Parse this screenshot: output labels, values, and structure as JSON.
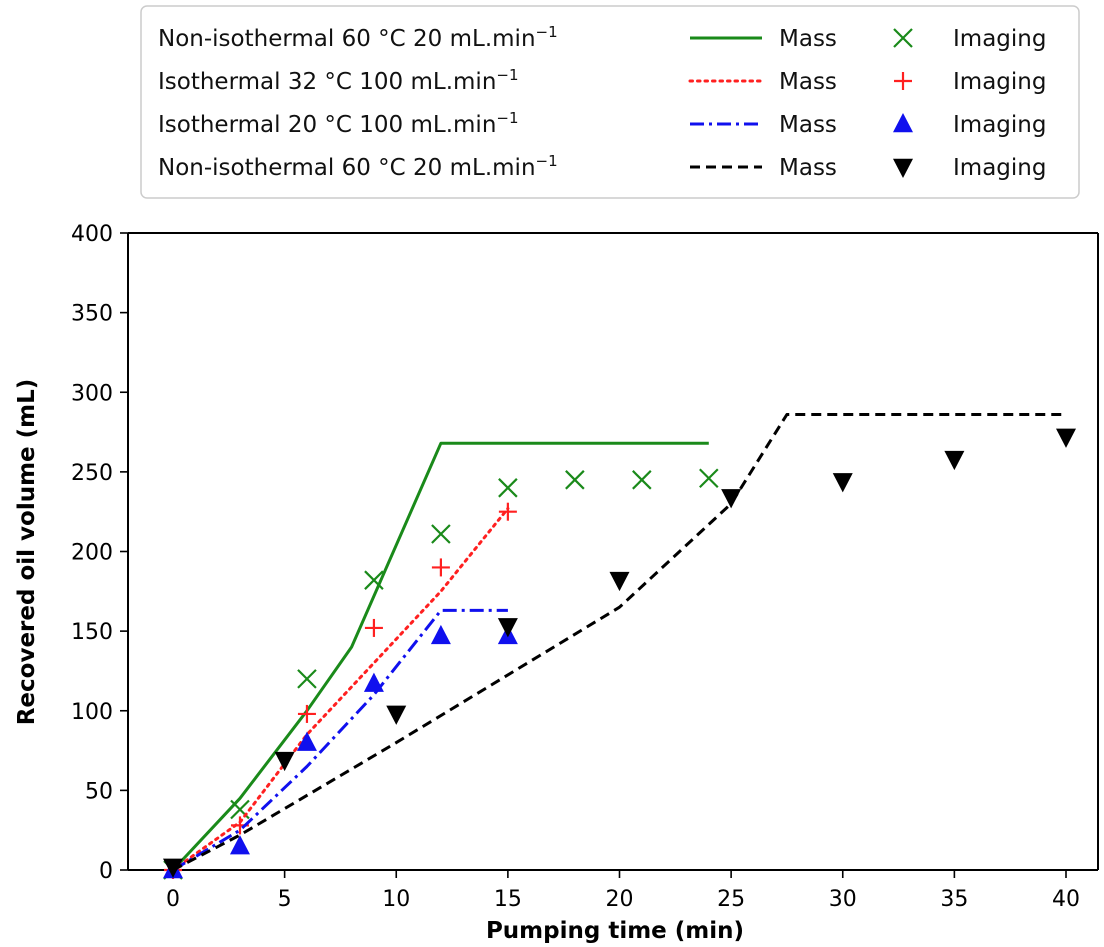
{
  "chart_data": {
    "type": "line",
    "xlabel": "Pumping time (min)",
    "ylabel": "Recovered oil volume (mL)",
    "xlim": [
      -2,
      41.5
    ],
    "ylim": [
      0,
      400
    ],
    "xticks": [
      0,
      5,
      10,
      15,
      20,
      25,
      30,
      35,
      40
    ],
    "yticks": [
      0,
      50,
      100,
      150,
      200,
      250,
      300,
      350,
      400
    ],
    "grid": false,
    "legend_position": "top",
    "legend_rows": [
      {
        "condition_prefix": "Non-isothermal 60 °C 20 mL.min",
        "exponent": "−1",
        "mass_label": "Mass",
        "imaging_label": "Imaging"
      },
      {
        "condition_prefix": "Isothermal 32 °C 100 mL.min",
        "exponent": "−1",
        "mass_label": "Mass",
        "imaging_label": "Imaging"
      },
      {
        "condition_prefix": "Isothermal 20 °C 100 mL.min",
        "exponent": "−1",
        "mass_label": "Mass",
        "imaging_label": "Imaging"
      },
      {
        "condition_prefix": "Non-isothermal 60 °C 20 mL.min",
        "exponent": "−1",
        "mass_label": "Mass",
        "imaging_label": "Imaging"
      }
    ],
    "series": [
      {
        "color": "#1a8a1a",
        "line_style": "solid",
        "marker": "x",
        "mass": {
          "x": [
            0,
            3,
            6,
            8,
            12,
            24
          ],
          "y": [
            0,
            45,
            100,
            140,
            268,
            268
          ]
        },
        "imaging": {
          "x": [
            0,
            3,
            6,
            9,
            12,
            15,
            18,
            21,
            24
          ],
          "y": [
            0,
            38,
            120,
            182,
            211,
            240,
            245,
            245,
            246
          ]
        }
      },
      {
        "color": "#ff2020",
        "line_style": "dotted",
        "marker": "plus",
        "mass": {
          "x": [
            0,
            3,
            6,
            9,
            12,
            15
          ],
          "y": [
            0,
            30,
            85,
            130,
            175,
            227
          ]
        },
        "imaging": {
          "x": [
            0,
            3,
            6,
            9,
            12,
            15
          ],
          "y": [
            0,
            28,
            98,
            152,
            190,
            225
          ]
        }
      },
      {
        "color": "#1010ee",
        "line_style": "dashdot",
        "marker": "triangle-up",
        "mass": {
          "x": [
            0,
            3,
            6,
            9,
            12,
            15
          ],
          "y": [
            0,
            25,
            65,
            110,
            163,
            163
          ]
        },
        "imaging": {
          "x": [
            0,
            3,
            6,
            9,
            12,
            15
          ],
          "y": [
            0,
            15,
            80,
            117,
            147,
            147
          ]
        }
      },
      {
        "color": "#000000",
        "line_style": "dashed",
        "marker": "triangle-down",
        "mass": {
          "x": [
            0,
            3,
            10,
            20,
            25,
            27.5,
            40
          ],
          "y": [
            0,
            22,
            80,
            165,
            230,
            286,
            286
          ]
        },
        "imaging": {
          "x": [
            0,
            5,
            10,
            15,
            20,
            25,
            30,
            35,
            40
          ],
          "y": [
            2,
            69,
            98,
            153,
            182,
            234,
            244,
            258,
            272
          ]
        }
      }
    ]
  }
}
